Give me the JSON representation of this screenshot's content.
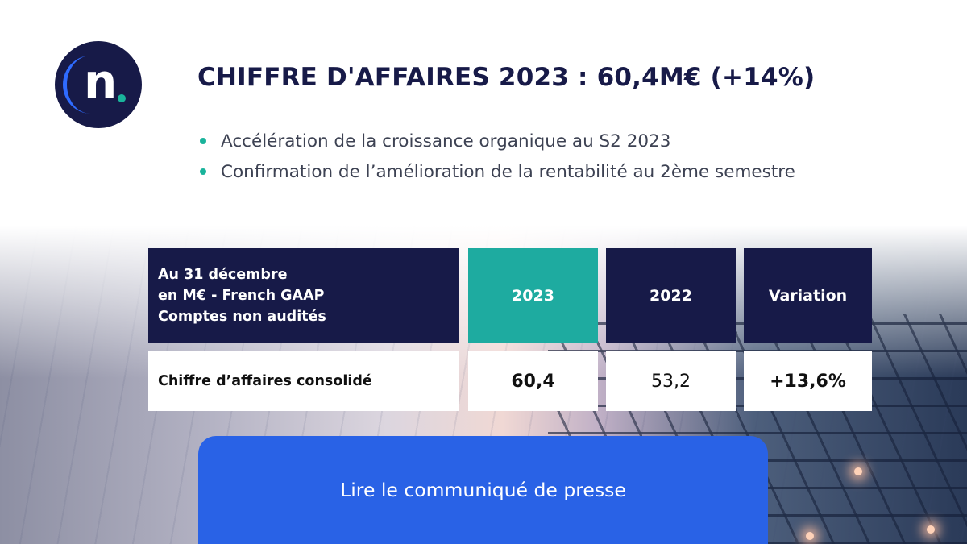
{
  "headline": "CHIFFRE D'AFFAIRES 2023 : 60,4M€ (+14%)",
  "bullets": [
    "Accélération de la croissance organique au S2 2023",
    "Confirmation de l’amélioration de la rentabilité au 2ème semestre"
  ],
  "table": {
    "header_label_lines": [
      "Au 31 décembre",
      "en M€ - French GAAP",
      "Comptes non audités"
    ],
    "columns": [
      "2023",
      "2022",
      "Variation"
    ],
    "row": {
      "label": "Chiffre d’affaires consolidé",
      "values": [
        "60,4",
        "53,2",
        "+13,6%"
      ]
    }
  },
  "cta": {
    "label": "Lire le communiqué de presse"
  },
  "colors": {
    "navy": "#171a48",
    "teal": "#1eaba0",
    "blue": "#2962e6"
  },
  "logo": {
    "letter": "n",
    "icon": "brand-logo-icon"
  }
}
